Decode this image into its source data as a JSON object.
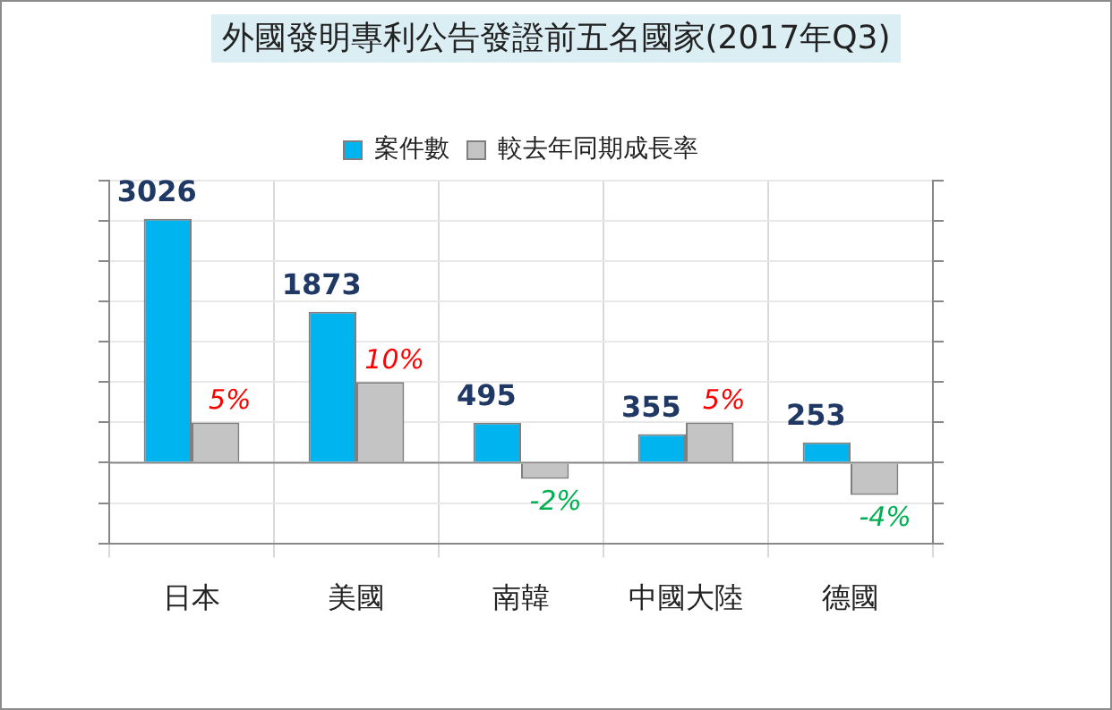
{
  "chart_data": {
    "type": "bar",
    "title": "外國發明專利公告發證前五名國家(2017年Q3)",
    "categories": [
      "日本",
      "美國",
      "南韓",
      "中國大陸",
      "德國"
    ],
    "series": [
      {
        "name": "案件數",
        "color": "#00b4ef",
        "values": [
          3026,
          1873,
          495,
          355,
          253
        ],
        "value_labels": [
          "3026",
          "1873",
          "495",
          "355",
          "253"
        ]
      },
      {
        "name": "較去年同期成長率",
        "color": "#c4c4c4",
        "axis": "y2",
        "values": [
          5,
          10,
          -2,
          5,
          -4
        ],
        "value_labels": [
          "5%",
          "10%",
          "-2%",
          "5%",
          "-4%"
        ]
      }
    ],
    "ylim": [
      -1000,
      3500
    ],
    "y2lim": [
      -10,
      35
    ],
    "grid": true,
    "legend": "top",
    "tick_labels": "x"
  }
}
